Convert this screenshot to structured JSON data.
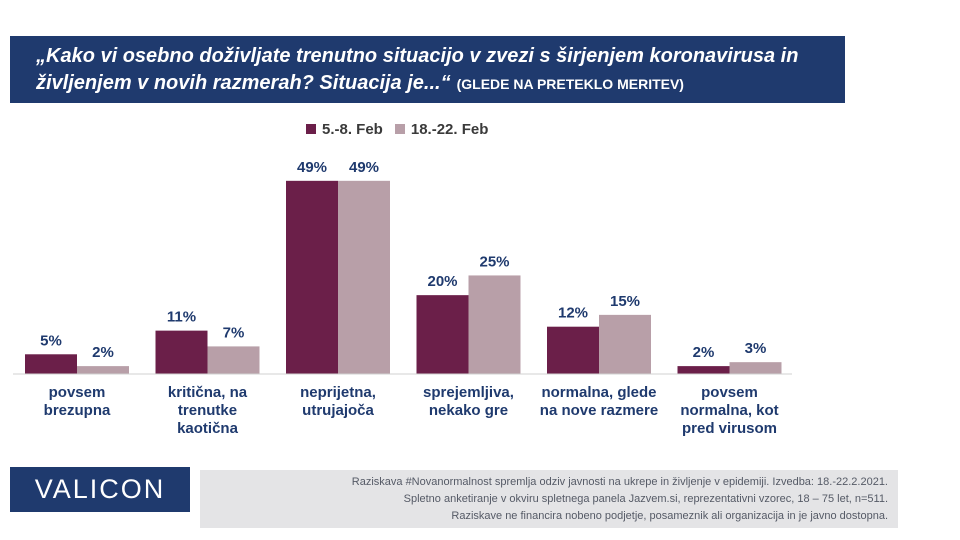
{
  "title": {
    "main": "„Kako vi osebno doživljate trenutno situacijo v zvezi s širjenjem koronavirusa in življenjem v novih razmerah? Situacija je...“",
    "suffix": "(GLEDE NA PRETEKLO MERITEV)"
  },
  "logo": "VALICON",
  "footer": [
    "Raziskava #Novanormalnost spremlja odziv javnosti na ukrepe in življenje v epidemiji. Izvedba: 18.-22.2.2021.",
    "Spletno anketiranje v okviru spletnega panela Jazvem.si, reprezentativni vzorec, 18 – 75 let, n=511.",
    "Raziskave ne financira nobeno podjetje, posameznik ali organizacija in je javno dostopna."
  ],
  "colors": {
    "series1": "#6b1f49",
    "series2": "#b89fa8",
    "title_bg": "#1f3a6e",
    "label_text": "#1f3a6e"
  },
  "chart_data": {
    "type": "bar",
    "categories": [
      [
        "povsem",
        "brezupna"
      ],
      [
        "kritična, na",
        "trenutke",
        "kaotična"
      ],
      [
        "neprijetna,",
        "utrujajoča"
      ],
      [
        "sprejemljiva,",
        "nekako gre"
      ],
      [
        "normalna, glede",
        "na nove razmere"
      ],
      [
        "povsem",
        "normalna, kot",
        "pred virusom"
      ]
    ],
    "series": [
      {
        "name": "5.-8. Feb",
        "values": [
          5,
          11,
          49,
          20,
          12,
          2
        ],
        "labels": [
          "5%",
          "11%",
          "49%",
          "20%",
          "12%",
          "2%"
        ]
      },
      {
        "name": "18.-22. Feb",
        "values": [
          2,
          7,
          49,
          25,
          15,
          3
        ],
        "labels": [
          "2%",
          "7%",
          "49%",
          "25%",
          "15%",
          "3%"
        ]
      }
    ],
    "ylim": [
      0,
      50
    ],
    "legend": "top-center",
    "grid": false
  }
}
